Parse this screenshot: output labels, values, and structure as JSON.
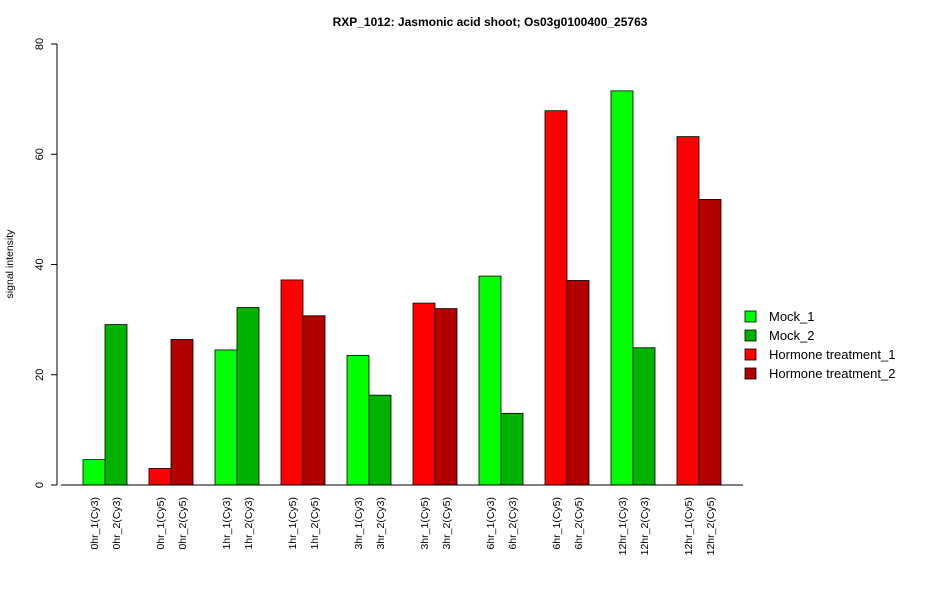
{
  "chart_data": {
    "type": "bar",
    "title": "RXP_1012: Jasmonic acid shoot; Os03g0100400_25763",
    "xlabel": "",
    "ylabel": "signal intensity",
    "ylim": [
      0,
      80
    ],
    "yticks": [
      0,
      20,
      40,
      60,
      80
    ],
    "grid": false,
    "legend_position": "right",
    "legend": [
      {
        "name": "Mock_1",
        "color": "#00ff00"
      },
      {
        "name": "Mock_2",
        "color": "#00b200"
      },
      {
        "name": "Hormone treatment_1",
        "color": "#ff0000"
      },
      {
        "name": "Hormone treatment_2",
        "color": "#b20000"
      }
    ],
    "bars": [
      {
        "label": "0hr_1(Cy3)",
        "value": 4.6,
        "series": 0
      },
      {
        "label": "0hr_2(Cy3)",
        "value": 29.1,
        "series": 1
      },
      {
        "label": "0hr_1(Cy5)",
        "value": 3.0,
        "series": 2
      },
      {
        "label": "0hr_2(Cy5)",
        "value": 26.4,
        "series": 3
      },
      {
        "label": "1hr_1(Cy3)",
        "value": 24.5,
        "series": 0
      },
      {
        "label": "1hr_2(Cy3)",
        "value": 32.2,
        "series": 1
      },
      {
        "label": "1hr_1(Cy5)",
        "value": 37.2,
        "series": 2
      },
      {
        "label": "1hr_2(Cy5)",
        "value": 30.7,
        "series": 3
      },
      {
        "label": "3hr_1(Cy3)",
        "value": 23.5,
        "series": 0
      },
      {
        "label": "3hr_2(Cy3)",
        "value": 16.3,
        "series": 1
      },
      {
        "label": "3hr_1(Cy5)",
        "value": 33.0,
        "series": 2
      },
      {
        "label": "3hr_2(Cy5)",
        "value": 32.0,
        "series": 3
      },
      {
        "label": "6hr_1(Cy3)",
        "value": 37.9,
        "series": 0
      },
      {
        "label": "6hr_2(Cy3)",
        "value": 13.0,
        "series": 1
      },
      {
        "label": "6hr_1(Cy5)",
        "value": 67.9,
        "series": 2
      },
      {
        "label": "6hr_2(Cy5)",
        "value": 37.1,
        "series": 3
      },
      {
        "label": "12hr_1(Cy3)",
        "value": 71.5,
        "series": 0
      },
      {
        "label": "12hr_2(Cy3)",
        "value": 24.9,
        "series": 1
      },
      {
        "label": "12hr_1(Cy5)",
        "value": 63.2,
        "series": 2
      },
      {
        "label": "12hr_2(Cy5)",
        "value": 51.8,
        "series": 3
      }
    ]
  }
}
